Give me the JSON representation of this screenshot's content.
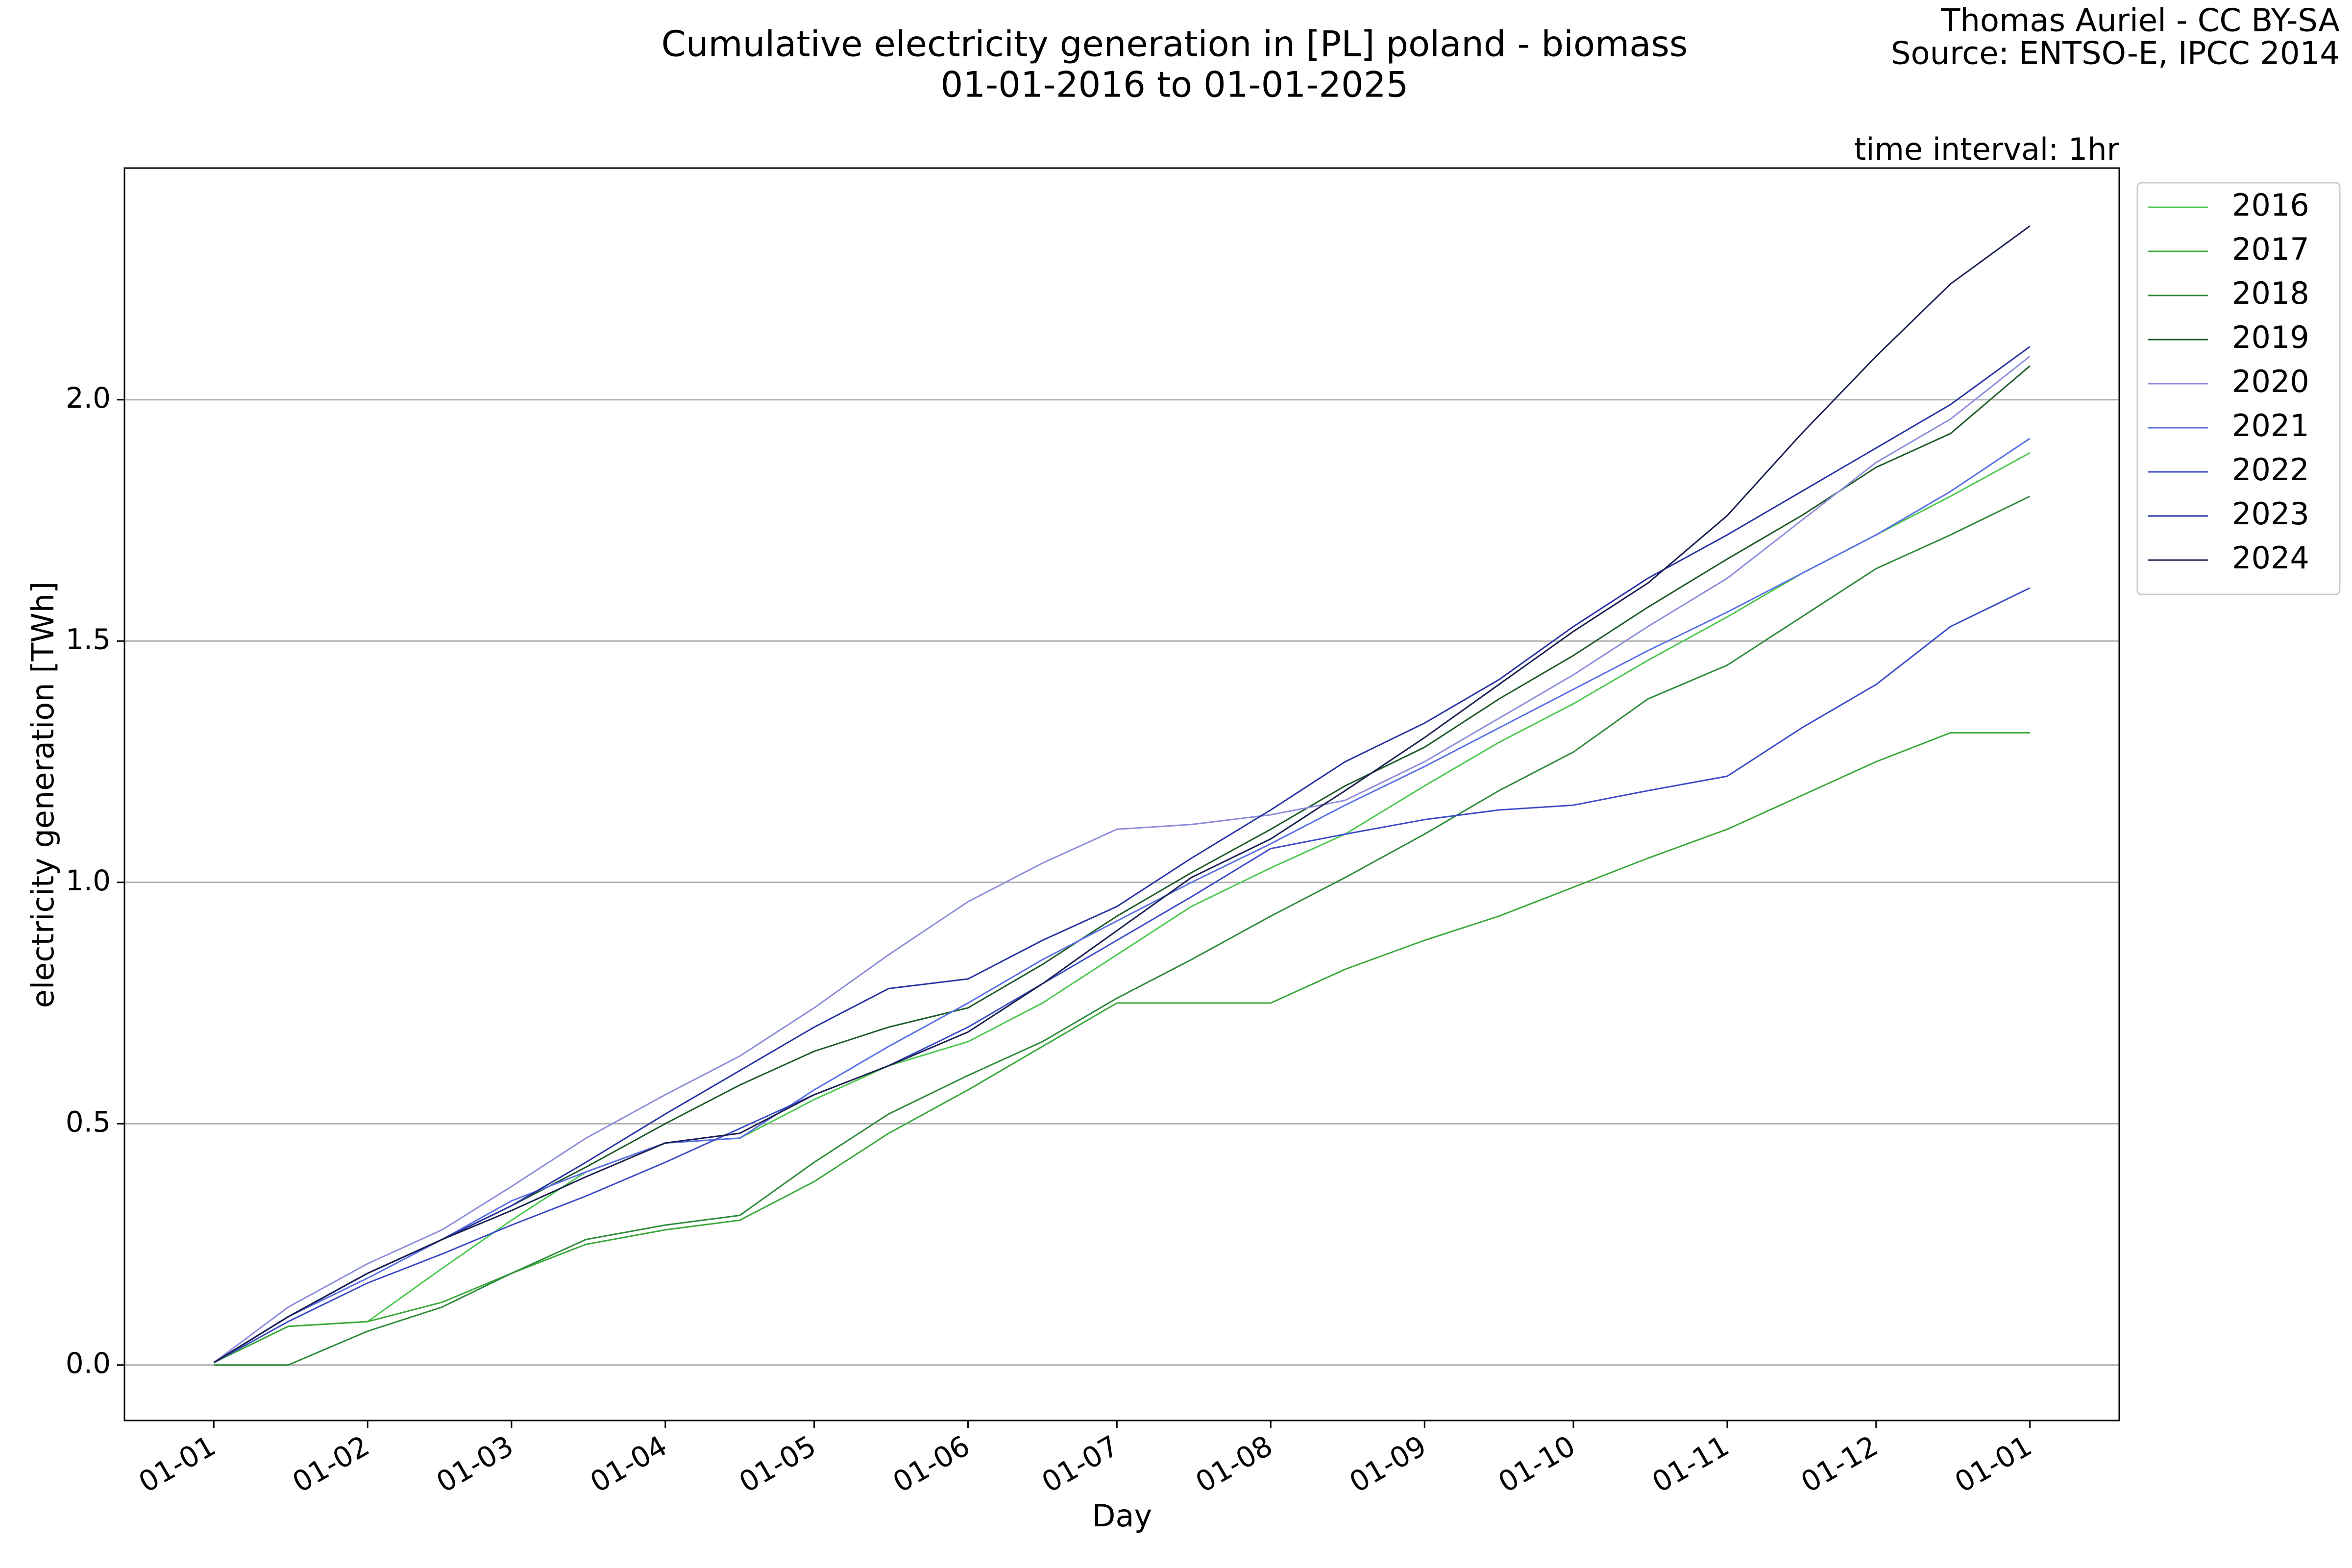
{
  "chart_data": {
    "type": "line",
    "title": "Cumulative electricity generation in [PL] poland - biomass",
    "subtitle": "01-01-2016 to 01-01-2025",
    "annotations": [
      "Thomas Auriel - CC BY-SA",
      "Source: ENTSO-E, IPCC 2014",
      "time interval: 1hr"
    ],
    "x_label": "Day",
    "y_label": "electricity generation [TWh]",
    "x": [
      0,
      15,
      31,
      46,
      60,
      75,
      91,
      106,
      121,
      136,
      152,
      167,
      182,
      197,
      213,
      228,
      244,
      259,
      274,
      289,
      305,
      320,
      335,
      350,
      366
    ],
    "xlim": [
      -18,
      384
    ],
    "xticks": [
      {
        "value": 0,
        "label": "01-01"
      },
      {
        "value": 31,
        "label": "01-02"
      },
      {
        "value": 60,
        "label": "01-03"
      },
      {
        "value": 91,
        "label": "01-04"
      },
      {
        "value": 121,
        "label": "01-05"
      },
      {
        "value": 152,
        "label": "01-06"
      },
      {
        "value": 182,
        "label": "01-07"
      },
      {
        "value": 213,
        "label": "01-08"
      },
      {
        "value": 244,
        "label": "01-09"
      },
      {
        "value": 274,
        "label": "01-10"
      },
      {
        "value": 305,
        "label": "01-11"
      },
      {
        "value": 335,
        "label": "01-12"
      },
      {
        "value": 366,
        "label": "01-01"
      }
    ],
    "ylim": [
      -0.115,
      2.48
    ],
    "yticks": [
      {
        "value": 0,
        "label": "0.0"
      },
      0.5,
      {
        "value": 1,
        "label": "1.0"
      },
      1.5,
      {
        "value": 2,
        "label": "2.0"
      }
    ],
    "grid": "y",
    "legend": "upper right outside",
    "series": [
      {
        "name": "2016",
        "color": "#4cc84c",
        "values": [
          0.005,
          0.08,
          0.09,
          0.2,
          0.3,
          0.4,
          0.46,
          0.47,
          0.55,
          0.62,
          0.67,
          0.75,
          0.85,
          0.95,
          1.03,
          1.1,
          1.2,
          1.29,
          1.37,
          1.46,
          1.55,
          1.64,
          1.72,
          1.8,
          1.89
        ]
      },
      {
        "name": "2017",
        "color": "#3aa83a",
        "values": [
          0.005,
          0.08,
          0.09,
          0.13,
          0.19,
          0.25,
          0.28,
          0.3,
          0.38,
          0.48,
          0.57,
          0.66,
          0.75,
          0.75,
          0.75,
          0.82,
          0.88,
          0.93,
          0.99,
          1.05,
          1.11,
          1.18,
          1.25,
          1.31,
          1.31
        ]
      },
      {
        "name": "2018",
        "color": "#2d8a3a",
        "values": [
          0,
          0,
          0.07,
          0.12,
          0.19,
          0.26,
          0.29,
          0.31,
          0.42,
          0.52,
          0.6,
          0.67,
          0.76,
          0.84,
          0.93,
          1.01,
          1.1,
          1.19,
          1.27,
          1.38,
          1.45,
          1.55,
          1.65,
          1.72,
          1.8
        ]
      },
      {
        "name": "2019",
        "color": "#1d5a28",
        "values": [
          0.005,
          0.1,
          0.19,
          0.26,
          0.33,
          0.41,
          0.5,
          0.58,
          0.65,
          0.7,
          0.74,
          0.83,
          0.93,
          1.02,
          1.11,
          1.2,
          1.28,
          1.38,
          1.47,
          1.57,
          1.67,
          1.76,
          1.86,
          1.93,
          2.07
        ]
      },
      {
        "name": "2020",
        "color": "#8c8cdc",
        "values": [
          0.005,
          0.12,
          0.21,
          0.28,
          0.37,
          0.47,
          0.56,
          0.64,
          0.74,
          0.85,
          0.96,
          1.04,
          1.11,
          1.12,
          1.14,
          1.17,
          1.25,
          1.34,
          1.43,
          1.53,
          1.63,
          1.75,
          1.87,
          1.96,
          2.09
        ]
      },
      {
        "name": "2021",
        "color": "#5a6ee6",
        "values": [
          0.005,
          0.1,
          0.18,
          0.26,
          0.34,
          0.4,
          0.46,
          0.47,
          0.57,
          0.66,
          0.75,
          0.84,
          0.92,
          1.0,
          1.08,
          1.16,
          1.24,
          1.32,
          1.4,
          1.48,
          1.56,
          1.64,
          1.72,
          1.81,
          1.92
        ]
      },
      {
        "name": "2022",
        "color": "#3c4bc8",
        "values": [
          0.005,
          0.09,
          0.17,
          0.23,
          0.29,
          0.35,
          0.42,
          0.49,
          0.56,
          0.62,
          0.7,
          0.79,
          0.88,
          0.97,
          1.07,
          1.1,
          1.13,
          1.15,
          1.16,
          1.19,
          1.22,
          1.32,
          1.41,
          1.53,
          1.61
        ]
      },
      {
        "name": "2023",
        "color": "#2833a0",
        "values": [
          0.005,
          0.1,
          0.19,
          0.26,
          0.33,
          0.42,
          0.52,
          0.61,
          0.7,
          0.78,
          0.8,
          0.88,
          0.95,
          1.05,
          1.15,
          1.25,
          1.33,
          1.42,
          1.53,
          1.63,
          1.72,
          1.81,
          1.9,
          1.99,
          2.11
        ]
      },
      {
        "name": "2024",
        "color": "#1a1f50",
        "values": [
          0.005,
          0.1,
          0.19,
          0.26,
          0.32,
          0.39,
          0.46,
          0.48,
          0.56,
          0.62,
          0.69,
          0.79,
          0.9,
          1.01,
          1.09,
          1.19,
          1.3,
          1.41,
          1.52,
          1.62,
          1.76,
          1.93,
          2.09,
          2.24,
          2.36
        ]
      }
    ]
  }
}
